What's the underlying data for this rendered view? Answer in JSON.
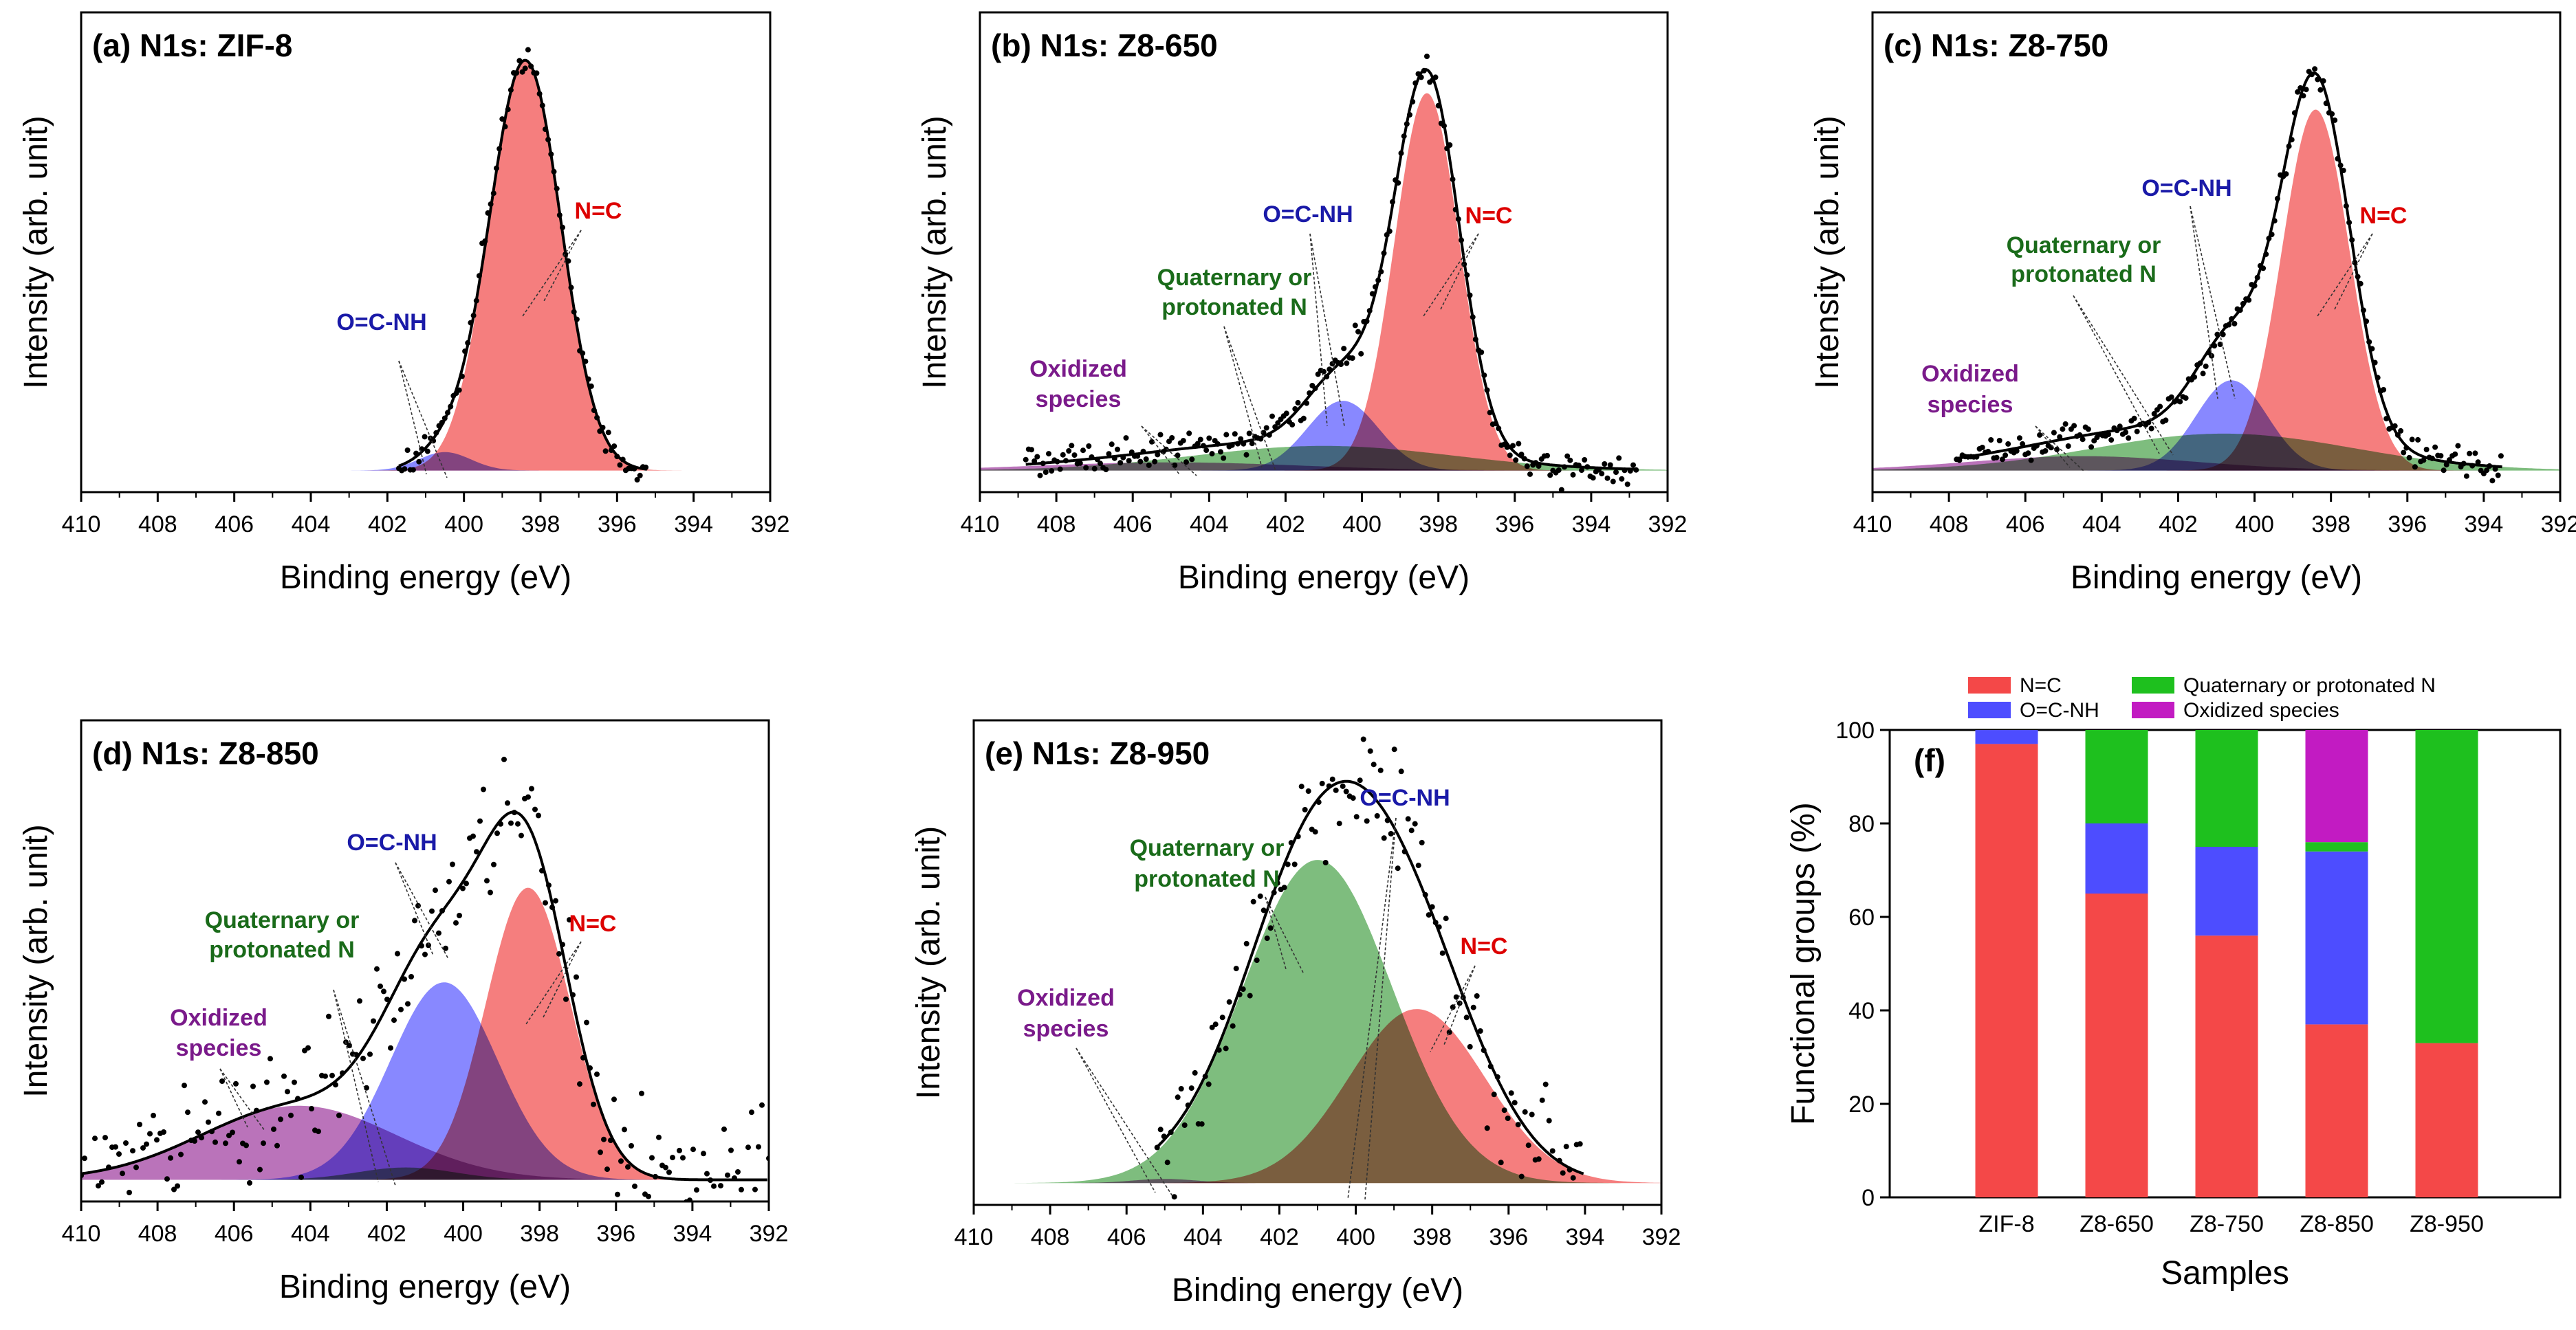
{
  "chart_data": [
    {
      "type": "line",
      "title": "(a) N1s: ZIF-8",
      "xlabel": "Binding energy (eV)",
      "ylabel": "Intensity (arb. unit)",
      "xlim": [
        410,
        392
      ],
      "xticks": [
        "410",
        "408",
        "406",
        "404",
        "402",
        "400",
        "398",
        "396",
        "394",
        "392"
      ],
      "grid": false,
      "components": [
        {
          "name": "N=C",
          "center": 398.4,
          "height": 1.0,
          "fwhm": 2.2,
          "color": "#f25a5a"
        },
        {
          "name": "O=C-NH",
          "center": 400.5,
          "height": 0.045,
          "fwhm": 1.6,
          "color": "#6666ff"
        }
      ],
      "data_range": [
        401.7,
        395.2
      ],
      "annotations": [
        {
          "text": "N=C",
          "color": "#dd0000"
        },
        {
          "text": "O=C-NH",
          "color": "#1a1aa8"
        }
      ]
    },
    {
      "type": "line",
      "title": "(b) N1s: Z8-650",
      "xlabel": "Binding energy (eV)",
      "ylabel": "Intensity (arb. unit)",
      "xlim": [
        410,
        392
      ],
      "xticks": [
        "410",
        "408",
        "406",
        "404",
        "402",
        "400",
        "398",
        "396",
        "394",
        "392"
      ],
      "grid": false,
      "components": [
        {
          "name": "N=C",
          "center": 398.3,
          "height": 0.92,
          "fwhm": 2.0,
          "color": "#f25a5a"
        },
        {
          "name": "O=C-NH",
          "center": 400.5,
          "height": 0.17,
          "fwhm": 2.2,
          "color": "#6666ff"
        },
        {
          "name": "Quaternary or protonated N",
          "center": 401.0,
          "height": 0.06,
          "fwhm": 8.0,
          "color": "#5aaa5a"
        },
        {
          "name": "Oxidized species",
          "center": 405.0,
          "height": 0.02,
          "fwhm": 8.0,
          "color": "#a64ca6"
        }
      ],
      "data_range": [
        408.8,
        392.8
      ],
      "annotations": [
        {
          "text": "N=C",
          "color": "#dd0000"
        },
        {
          "text": "O=C-NH",
          "color": "#1a1aa8"
        },
        {
          "text": "Quaternary or",
          "color": "#1a6b1a"
        },
        {
          "text": "protonated N",
          "color": "#1a6b1a"
        },
        {
          "text": "Oxidized",
          "color": "#7a1a8a"
        },
        {
          "text": "species",
          "color": "#7a1a8a"
        }
      ]
    },
    {
      "type": "line",
      "title": "(c) N1s: Z8-750",
      "xlabel": "Binding energy (eV)",
      "ylabel": "Intensity (arb. unit)",
      "xlim": [
        410,
        392
      ],
      "xticks": [
        "410",
        "408",
        "406",
        "404",
        "402",
        "400",
        "398",
        "396",
        "394",
        "392"
      ],
      "grid": false,
      "components": [
        {
          "name": "N=C",
          "center": 398.4,
          "height": 0.88,
          "fwhm": 2.1,
          "color": "#f25a5a"
        },
        {
          "name": "O=C-NH",
          "center": 400.6,
          "height": 0.22,
          "fwhm": 2.2,
          "color": "#6666ff"
        },
        {
          "name": "Quaternary or protonated N",
          "center": 400.8,
          "height": 0.09,
          "fwhm": 8.0,
          "color": "#5aaa5a"
        },
        {
          "name": "Oxidized species",
          "center": 404.5,
          "height": 0.035,
          "fwhm": 7.0,
          "color": "#a64ca6"
        }
      ],
      "data_range": [
        407.8,
        393.5
      ],
      "annotations": [
        {
          "text": "N=C",
          "color": "#dd0000"
        },
        {
          "text": "O=C-NH",
          "color": "#1a1aa8"
        },
        {
          "text": "Quaternary or",
          "color": "#1a6b1a"
        },
        {
          "text": "protonated N",
          "color": "#1a6b1a"
        },
        {
          "text": "Oxidized",
          "color": "#7a1a8a"
        },
        {
          "text": "species",
          "color": "#7a1a8a"
        }
      ]
    },
    {
      "type": "line",
      "title": "(d) N1s: Z8-850",
      "xlabel": "Binding energy (eV)",
      "ylabel": "Intensity (arb. unit)",
      "xlim": [
        410,
        392
      ],
      "xticks": [
        "410",
        "408",
        "406",
        "404",
        "402",
        "400",
        "398",
        "396",
        "394",
        "392"
      ],
      "grid": false,
      "components": [
        {
          "name": "N=C",
          "center": 398.3,
          "height": 0.71,
          "fwhm": 2.6,
          "color": "#f25a5a"
        },
        {
          "name": "O=C-NH",
          "center": 400.5,
          "height": 0.48,
          "fwhm": 3.3,
          "color": "#6666ff"
        },
        {
          "name": "Quaternary or protonated N",
          "center": 401.5,
          "height": 0.03,
          "fwhm": 3.0,
          "color": "#5aaa5a"
        },
        {
          "name": "Oxidized species",
          "center": 404.3,
          "height": 0.18,
          "fwhm": 6.0,
          "color": "#a64ca6"
        }
      ],
      "data_range": [
        410,
        392
      ],
      "annotations": [
        {
          "text": "N=C",
          "color": "#dd0000"
        },
        {
          "text": "O=C-NH",
          "color": "#1a1aa8"
        },
        {
          "text": "Quaternary or",
          "color": "#1a6b1a"
        },
        {
          "text": "protonated N",
          "color": "#1a6b1a"
        },
        {
          "text": "Oxidized",
          "color": "#7a1a8a"
        },
        {
          "text": "species",
          "color": "#7a1a8a"
        }
      ]
    },
    {
      "type": "line",
      "title": "(e) N1s: Z8-950",
      "xlabel": "Binding energy (eV)",
      "ylabel": "Intensity (arb. unit)",
      "xlim": [
        410,
        392
      ],
      "xticks": [
        "410",
        "408",
        "406",
        "404",
        "402",
        "400",
        "398",
        "396",
        "394",
        "392"
      ],
      "grid": false,
      "components": [
        {
          "name": "Quaternary or protonated N",
          "center": 401.0,
          "height": 0.78,
          "fwhm": 4.6,
          "color": "#5aaa5a"
        },
        {
          "name": "N=C",
          "center": 398.4,
          "height": 0.42,
          "fwhm": 4.2,
          "color": "#f25a5a"
        },
        {
          "name": "Oxidized species",
          "center": 405.0,
          "height": 0.01,
          "fwhm": 2.0,
          "color": "#a64ca6"
        }
      ],
      "data_range": [
        405.2,
        394.0
      ],
      "annotations": [
        {
          "text": "N=C",
          "color": "#dd0000"
        },
        {
          "text": "O=C-NH",
          "color": "#1a1aa8"
        },
        {
          "text": "Quaternary or",
          "color": "#1a6b1a"
        },
        {
          "text": "protonated N",
          "color": "#1a6b1a"
        },
        {
          "text": "Oxidized",
          "color": "#7a1a8a"
        },
        {
          "text": "species",
          "color": "#7a1a8a"
        }
      ]
    },
    {
      "type": "bar",
      "stacked": true,
      "title": "(f)",
      "xlabel": "Samples",
      "ylabel": "Functional groups (%)",
      "ylim": [
        0,
        100
      ],
      "yticks": [
        "0",
        "20",
        "40",
        "60",
        "80",
        "100"
      ],
      "categories": [
        "ZIF-8",
        "Z8-650",
        "Z8-750",
        "Z8-850",
        "Z8-950"
      ],
      "legend_position": "top",
      "series": [
        {
          "name": "N=C",
          "color": "#f44848",
          "values": [
            97,
            65,
            56,
            37,
            33
          ]
        },
        {
          "name": "O=C-NH",
          "color": "#4d4dff",
          "values": [
            3,
            15,
            19,
            37,
            0
          ]
        },
        {
          "name": "Quaternary or protonated N",
          "color": "#1ec01e",
          "values": [
            0,
            20,
            25,
            2,
            67
          ]
        },
        {
          "name": "Oxidized species",
          "color": "#c21bc2",
          "values": [
            0,
            0,
            0,
            24,
            0
          ]
        }
      ]
    }
  ]
}
